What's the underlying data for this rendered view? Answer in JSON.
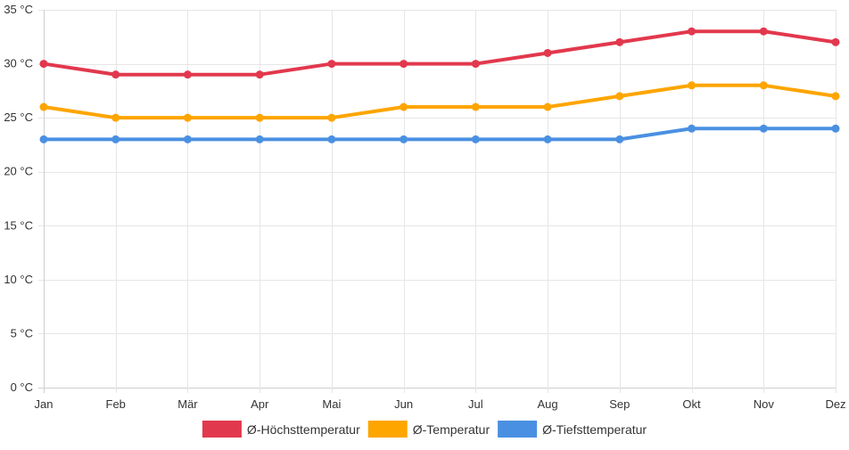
{
  "chart_data": {
    "type": "line",
    "title": "",
    "xlabel": "",
    "ylabel": "",
    "categories": [
      "Jan",
      "Feb",
      "Mär",
      "Apr",
      "Mai",
      "Jun",
      "Jul",
      "Aug",
      "Sep",
      "Okt",
      "Nov",
      "Dez"
    ],
    "ylim": [
      0,
      35
    ],
    "y_ticks": [
      0,
      5,
      10,
      15,
      20,
      25,
      30,
      35
    ],
    "y_tick_suffix": " °C",
    "grid": true,
    "legend_position": "bottom",
    "series": [
      {
        "name": "Ø-Höchsttemperatur",
        "color": "#e2384d",
        "values": [
          30,
          29,
          29,
          29,
          30,
          30,
          30,
          31,
          32,
          33,
          33,
          32
        ]
      },
      {
        "name": "Ø-Temperatur",
        "color": "#fea500",
        "values": [
          26,
          25,
          25,
          25,
          25,
          26,
          26,
          26,
          27,
          28,
          28,
          27
        ]
      },
      {
        "name": "Ø-Tiefsttemperatur",
        "color": "#4a90e2",
        "values": [
          23,
          23,
          23,
          23,
          23,
          23,
          23,
          23,
          23,
          24,
          24,
          24
        ]
      }
    ]
  }
}
